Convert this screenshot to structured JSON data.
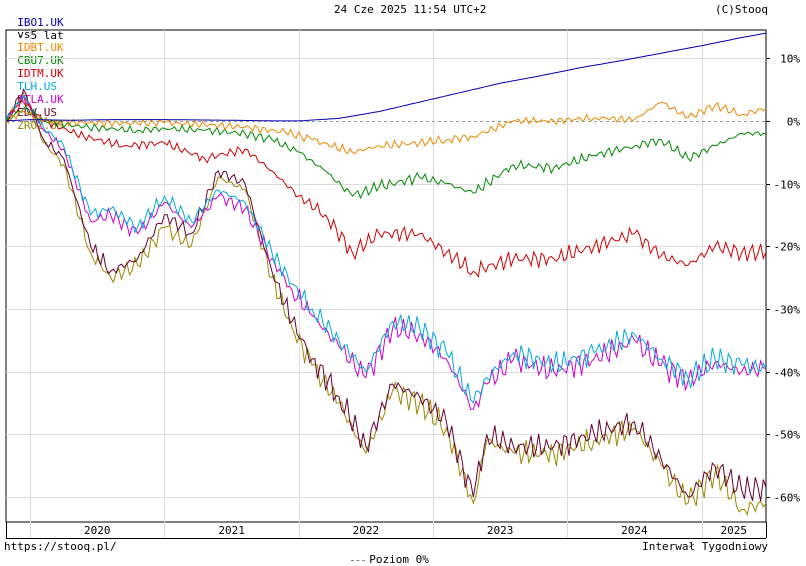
{
  "header": {
    "main_ticker": "IBO1.UK",
    "main_color": "#0000aa",
    "period": "- 5 lat",
    "vs_label": "vs",
    "date": "24 Cze 2025 11:54 UTC+2",
    "copyright": "(C)Stooq"
  },
  "footer": {
    "url": "https://stooq.pl/",
    "zero_label": "Poziom 0%",
    "interval": "Interwał Tygodniowy"
  },
  "chart_data": {
    "type": "line",
    "x_ticks": [
      "2020",
      "2021",
      "2022",
      "2023",
      "2024",
      "2025"
    ],
    "y_ticks": [
      "10%",
      "0%",
      "-10%",
      "-20%",
      "-30%",
      "-40%",
      "-50%",
      "-60%"
    ],
    "y_tick_values": [
      10,
      0,
      -10,
      -20,
      -30,
      -40,
      -50,
      -60
    ],
    "ylim": [
      -64,
      14.5
    ],
    "xlim": [
      2019.82,
      2025.48
    ],
    "grid": true,
    "zero_line": true,
    "series": [
      {
        "name": "IBO1.UK",
        "color": "#0000aa",
        "x": [
          2019.82,
          2020.0,
          2020.3,
          2020.6,
          2021.0,
          2021.5,
          2021.8,
          2022.0,
          2022.3,
          2022.6,
          2022.9,
          2023.2,
          2023.5,
          2023.8,
          2024.1,
          2024.4,
          2024.7,
          2025.0,
          2025.3,
          2025.48
        ],
        "y": [
          0,
          0.2,
          0.1,
          0.2,
          0.2,
          0.1,
          0,
          0,
          0.4,
          1.5,
          3.0,
          4.5,
          6.0,
          7.2,
          8.5,
          9.6,
          10.8,
          12.0,
          13.3,
          14.0
        ]
      },
      {
        "name": "IDBT.UK",
        "color": "#ee8800",
        "x": [
          2019.82,
          2019.95,
          2020.1,
          2020.4,
          2020.8,
          2021.0,
          2021.3,
          2021.6,
          2021.9,
          2022.1,
          2022.4,
          2022.6,
          2022.9,
          2023.1,
          2023.3,
          2023.6,
          2023.9,
          2024.2,
          2024.5,
          2024.7,
          2024.9,
          2025.1,
          2025.3,
          2025.48
        ],
        "y": [
          0,
          1.5,
          0,
          -0.3,
          -0.4,
          -0.3,
          -0.6,
          -1.0,
          -1.8,
          -3.0,
          -5.0,
          -4.0,
          -3.5,
          -3.0,
          -2.5,
          0,
          0,
          0.5,
          0.2,
          3.0,
          0.5,
          2.5,
          1.0,
          2.0
        ]
      },
      {
        "name": "CBU7.UK",
        "color": "#008800",
        "x": [
          2019.82,
          2019.95,
          2020.1,
          2020.4,
          2020.8,
          2021.0,
          2021.3,
          2021.6,
          2021.8,
          2022.0,
          2022.2,
          2022.4,
          2022.6,
          2022.9,
          2023.1,
          2023.3,
          2023.6,
          2023.9,
          2024.2,
          2024.5,
          2024.7,
          2024.9,
          2025.1,
          2025.3,
          2025.48
        ],
        "y": [
          0,
          2.0,
          0,
          -1.0,
          -1.5,
          -1.2,
          -1.5,
          -2.0,
          -3.0,
          -5.0,
          -8.0,
          -12.0,
          -10.5,
          -9.0,
          -10.0,
          -11.5,
          -7.0,
          -7.5,
          -5.5,
          -4.0,
          -3.0,
          -6.0,
          -4.0,
          -2.0,
          -2.0
        ]
      },
      {
        "name": "IDTM.UK",
        "color": "#cc0000",
        "x": [
          2019.82,
          2019.95,
          2020.1,
          2020.4,
          2020.7,
          2021.0,
          2021.3,
          2021.6,
          2021.8,
          2022.0,
          2022.2,
          2022.4,
          2022.6,
          2022.9,
          2023.1,
          2023.3,
          2023.6,
          2023.9,
          2024.2,
          2024.5,
          2024.7,
          2024.9,
          2025.1,
          2025.3,
          2025.48
        ],
        "y": [
          0,
          3.0,
          0,
          -2.5,
          -4.0,
          -3.5,
          -6.0,
          -4.5,
          -8.0,
          -12.0,
          -15.0,
          -21.0,
          -18.0,
          -18.0,
          -21.0,
          -24.0,
          -22.0,
          -22.0,
          -20.0,
          -18.0,
          -21.5,
          -23.0,
          -20.0,
          -21.0,
          -21.0
        ]
      },
      {
        "name": "TLH.US",
        "color": "#00aadd",
        "x": [
          2019.82,
          2019.95,
          2020.1,
          2020.25,
          2020.45,
          2020.6,
          2020.8,
          2021.0,
          2021.2,
          2021.4,
          2021.6,
          2021.8,
          2021.95,
          2022.1,
          2022.3,
          2022.5,
          2022.7,
          2022.9,
          2023.1,
          2023.3,
          2023.4,
          2023.6,
          2023.9,
          2024.2,
          2024.5,
          2024.7,
          2024.9,
          2025.1,
          2025.3,
          2025.48
        ],
        "y": [
          0,
          4.0,
          -1.0,
          -4.0,
          -15.0,
          -14.0,
          -17.0,
          -12.0,
          -16.0,
          -11.0,
          -13.0,
          -21.0,
          -26.0,
          -30.0,
          -35.0,
          -40.0,
          -32.0,
          -33.0,
          -37.0,
          -45.0,
          -41.0,
          -37.0,
          -39.0,
          -37.0,
          -34.0,
          -38.0,
          -41.0,
          -38.0,
          -39.0,
          -39.5
        ]
      },
      {
        "name": "DTLA.UK",
        "color": "#cc00cc",
        "x": [
          2019.82,
          2019.95,
          2020.1,
          2020.25,
          2020.45,
          2020.6,
          2020.8,
          2021.0,
          2021.2,
          2021.4,
          2021.6,
          2021.8,
          2021.95,
          2022.1,
          2022.3,
          2022.5,
          2022.7,
          2022.9,
          2023.1,
          2023.3,
          2023.4,
          2023.6,
          2023.9,
          2024.2,
          2024.5,
          2024.7,
          2024.9,
          2025.1,
          2025.3,
          2025.48
        ],
        "y": [
          0,
          4.0,
          -1.5,
          -4.5,
          -16.0,
          -15.0,
          -18.0,
          -13.0,
          -17.0,
          -12.0,
          -14.0,
          -22.0,
          -27.0,
          -31.0,
          -36.0,
          -41.0,
          -33.0,
          -34.0,
          -38.0,
          -46.0,
          -42.0,
          -38.0,
          -40.0,
          -38.0,
          -35.0,
          -39.0,
          -41.5,
          -38.5,
          -40.0,
          -39.5
        ]
      },
      {
        "name": "EDV.US",
        "color": "#660033",
        "x": [
          2019.82,
          2019.95,
          2020.1,
          2020.25,
          2020.45,
          2020.6,
          2020.8,
          2021.0,
          2021.2,
          2021.4,
          2021.6,
          2021.8,
          2021.95,
          2022.1,
          2022.3,
          2022.5,
          2022.7,
          2022.9,
          2023.1,
          2023.3,
          2023.4,
          2023.6,
          2023.9,
          2024.2,
          2024.5,
          2024.7,
          2024.9,
          2025.1,
          2025.3,
          2025.48
        ],
        "y": [
          0,
          5.0,
          -3.0,
          -6.0,
          -20.0,
          -24.0,
          -22.0,
          -15.0,
          -18.0,
          -8.0,
          -10.0,
          -24.0,
          -32.0,
          -38.0,
          -44.0,
          -52.0,
          -42.0,
          -44.0,
          -48.0,
          -60.0,
          -50.0,
          -52.0,
          -52.0,
          -50.0,
          -48.0,
          -54.0,
          -60.0,
          -55.0,
          -59.0,
          -58.5
        ]
      },
      {
        "name": "ZROZ.US",
        "color": "#998800",
        "x": [
          2019.82,
          2019.95,
          2020.1,
          2020.25,
          2020.45,
          2020.6,
          2020.8,
          2021.0,
          2021.2,
          2021.4,
          2021.6,
          2021.8,
          2021.95,
          2022.1,
          2022.3,
          2022.5,
          2022.7,
          2022.9,
          2023.1,
          2023.3,
          2023.4,
          2023.6,
          2023.9,
          2024.2,
          2024.5,
          2024.7,
          2024.9,
          2025.1,
          2025.3,
          2025.48
        ],
        "y": [
          0,
          4.5,
          -3.5,
          -7.0,
          -21.0,
          -25.0,
          -23.0,
          -17.0,
          -20.0,
          -9.0,
          -11.0,
          -25.0,
          -33.0,
          -39.0,
          -45.0,
          -53.0,
          -43.0,
          -45.0,
          -49.0,
          -61.0,
          -51.0,
          -53.0,
          -53.0,
          -51.0,
          -49.0,
          -55.0,
          -61.0,
          -56.0,
          -62.0,
          -61.0
        ]
      }
    ]
  }
}
